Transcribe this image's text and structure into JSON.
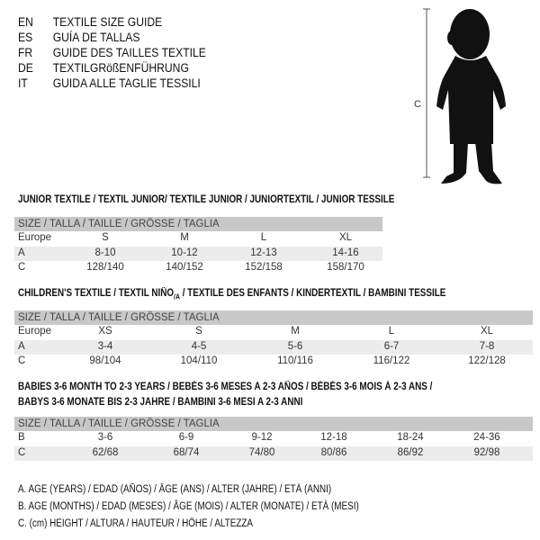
{
  "languages": [
    {
      "code": "EN",
      "title": "TEXTILE SIZE GUIDE"
    },
    {
      "code": "ES",
      "title": "GUÍA DE TALLAS"
    },
    {
      "code": "FR",
      "title": "GUIDE DES TAILLES TEXTILE"
    },
    {
      "code": "DE",
      "title": "TEXTILGRößENFÜHRUNG"
    },
    {
      "code": "IT",
      "title": "GUIDA ALLE TAGLIE TESSILI"
    }
  ],
  "figure": {
    "label": "C"
  },
  "junior": {
    "title": "JUNIOR TEXTILE / TEXTIL JUNIOR/ TEXTILE JUNIOR / JUNIORTEXTIL / JUNIOR TESSILE",
    "header": "SIZE / TALLA / TAILLE / GRÖSSE / TAGLIA",
    "rows": [
      {
        "label": "Europe",
        "values": [
          "S",
          "M",
          "L",
          "XL"
        ]
      },
      {
        "label": "A",
        "values": [
          "8-10",
          "10-12",
          "12-13",
          "14-16"
        ]
      },
      {
        "label": "C",
        "values": [
          "128/140",
          "140/152",
          "152/158",
          "158/170"
        ]
      }
    ]
  },
  "children": {
    "title_pre": "CHILDREN'S TEXTILE / TEXTIL NIÑO",
    "title_sub": "/A",
    "title_post": " / TEXTILE DES ENFANTS / KINDERTEXTIL / BAMBINI TESSILE",
    "header": "SIZE / TALLA / TAILLE / GRÖSSE / TAGLIA",
    "rows": [
      {
        "label": "Europe",
        "values": [
          "XS",
          "S",
          "M",
          "L",
          "XL"
        ]
      },
      {
        "label": "A",
        "values": [
          "3-4",
          "4-5",
          "5-6",
          "6-7",
          "7-8"
        ]
      },
      {
        "label": "C",
        "values": [
          "98/104",
          "104/110",
          "110/116",
          "116/122",
          "122/128"
        ]
      }
    ]
  },
  "babies": {
    "title_line1": "BABIES 3-6 MONTH TO 2-3 YEARS / BEBÉS 3-6 MESES A 2-3 AÑOS / BÉBÉS 3-6 MOIS À 2-3 ANS /",
    "title_line2": "BABYS 3-6 MONATE BIS 2-3 JAHRE / BAMBINI 3-6 MESI A 2-3 ANNI",
    "header": "SIZE / TALLA / TAILLE / GRÖSSE / TAGLIA",
    "rows": [
      {
        "label": "B",
        "values": [
          "3-6",
          "6-9",
          "9-12",
          "12-18",
          "18-24",
          "24-36"
        ]
      },
      {
        "label": "C",
        "values": [
          "62/68",
          "68/74",
          "74/80",
          "80/86",
          "86/92",
          "92/98"
        ]
      }
    ]
  },
  "notes": [
    "A. AGE (YEARS) / EDAD (AÑOS) / ÂGE (ANS) / ALTER (JAHRE) / ETÀ (ANNI)",
    "B. AGE (MONTHS) / EDAD (MESES) / ÂGE (MOIS) / ALTER (MONATE) / ETÀ (MESI)",
    "C. (cm) HEIGHT / ALTURA / HAUTEUR / HÖHE / ALTEZZA"
  ]
}
